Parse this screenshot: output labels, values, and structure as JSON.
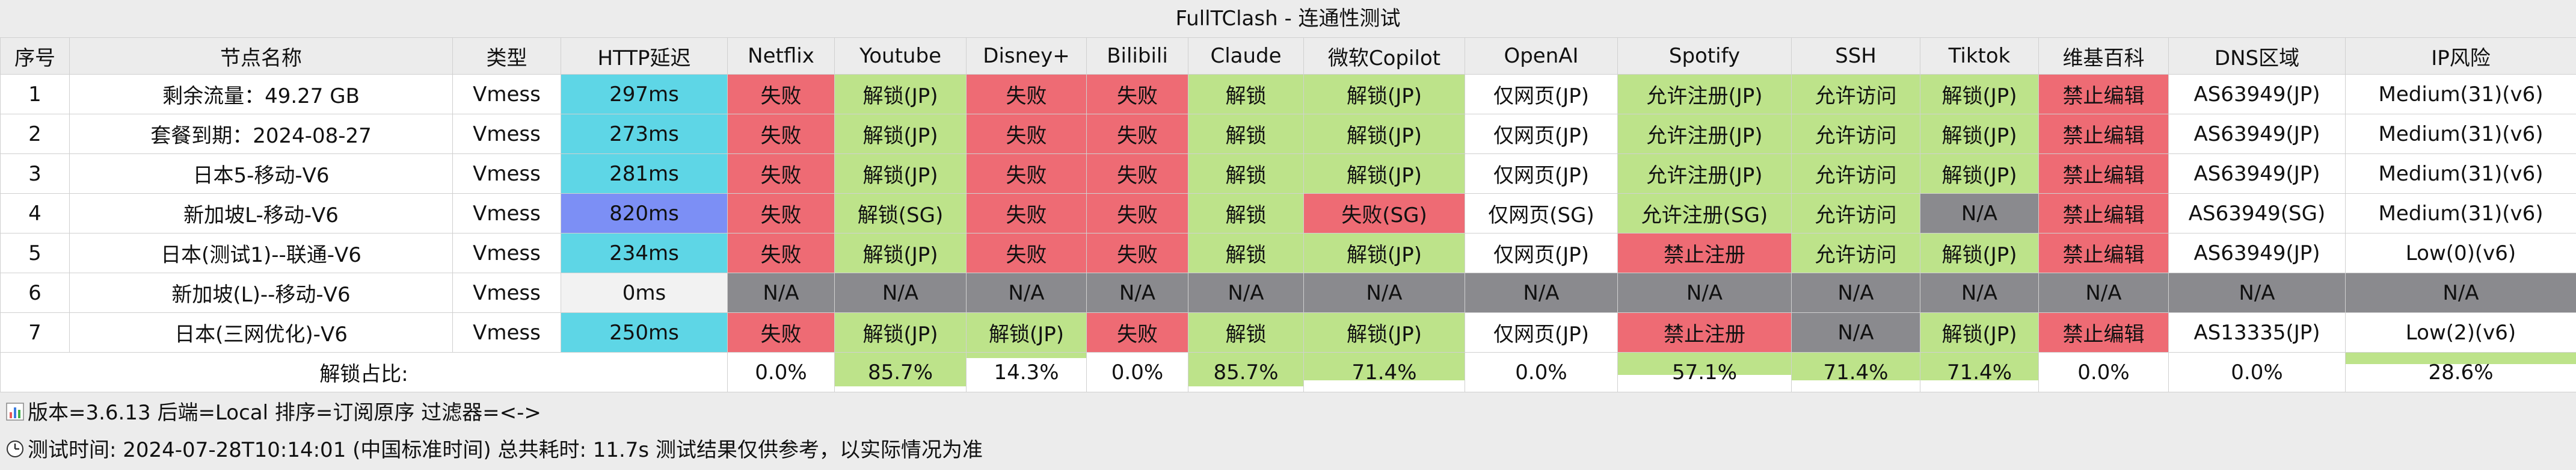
{
  "window": {
    "title": "FullTClash - 连通性测试"
  },
  "colors": {
    "fail": "#ee6b74",
    "unlock": "#bde38a",
    "na": "#8a8a8e",
    "neutral": "#ffffff",
    "latency_ok": "#5ed6e6",
    "latency_slow": "#7c8ff5",
    "latency_zero": "#f2f2f2"
  },
  "columns": [
    "序号",
    "节点名称",
    "类型",
    "HTTP延迟",
    "Netflix",
    "Youtube",
    "Disney+",
    "Bilibili",
    "Claude",
    "微软Copilot",
    "OpenAI",
    "Spotify",
    "SSH",
    "Tiktok",
    "维基百科",
    "DNS区域",
    "IP风险"
  ],
  "rows": [
    {
      "index": "1",
      "name": "剩余流量：49.27 GB",
      "type": "Vmess",
      "latency": "297ms",
      "latency_state": "cyan",
      "cells": [
        {
          "text": "失败",
          "state": "red"
        },
        {
          "text": "解锁(JP)",
          "state": "green"
        },
        {
          "text": "失败",
          "state": "red"
        },
        {
          "text": "失败",
          "state": "red"
        },
        {
          "text": "解锁",
          "state": "green"
        },
        {
          "text": "解锁(JP)",
          "state": "green"
        },
        {
          "text": "仅网页(JP)",
          "state": "white"
        },
        {
          "text": "允许注册(JP)",
          "state": "green"
        },
        {
          "text": "允许访问",
          "state": "green"
        },
        {
          "text": "解锁(JP)",
          "state": "green"
        },
        {
          "text": "禁止编辑",
          "state": "red"
        },
        {
          "text": "AS63949(JP)",
          "state": "white"
        },
        {
          "text": "Medium(31)(v6)",
          "state": "white"
        }
      ]
    },
    {
      "index": "2",
      "name": "套餐到期：2024-08-27",
      "type": "Vmess",
      "latency": "273ms",
      "latency_state": "cyan",
      "cells": [
        {
          "text": "失败",
          "state": "red"
        },
        {
          "text": "解锁(JP)",
          "state": "green"
        },
        {
          "text": "失败",
          "state": "red"
        },
        {
          "text": "失败",
          "state": "red"
        },
        {
          "text": "解锁",
          "state": "green"
        },
        {
          "text": "解锁(JP)",
          "state": "green"
        },
        {
          "text": "仅网页(JP)",
          "state": "white"
        },
        {
          "text": "允许注册(JP)",
          "state": "green"
        },
        {
          "text": "允许访问",
          "state": "green"
        },
        {
          "text": "解锁(JP)",
          "state": "green"
        },
        {
          "text": "禁止编辑",
          "state": "red"
        },
        {
          "text": "AS63949(JP)",
          "state": "white"
        },
        {
          "text": "Medium(31)(v6)",
          "state": "white"
        }
      ]
    },
    {
      "index": "3",
      "name": "日本5-移动-V6",
      "type": "Vmess",
      "latency": "281ms",
      "latency_state": "cyan",
      "cells": [
        {
          "text": "失败",
          "state": "red"
        },
        {
          "text": "解锁(JP)",
          "state": "green"
        },
        {
          "text": "失败",
          "state": "red"
        },
        {
          "text": "失败",
          "state": "red"
        },
        {
          "text": "解锁",
          "state": "green"
        },
        {
          "text": "解锁(JP)",
          "state": "green"
        },
        {
          "text": "仅网页(JP)",
          "state": "white"
        },
        {
          "text": "允许注册(JP)",
          "state": "green"
        },
        {
          "text": "允许访问",
          "state": "green"
        },
        {
          "text": "解锁(JP)",
          "state": "green"
        },
        {
          "text": "禁止编辑",
          "state": "red"
        },
        {
          "text": "AS63949(JP)",
          "state": "white"
        },
        {
          "text": "Medium(31)(v6)",
          "state": "white"
        }
      ]
    },
    {
      "index": "4",
      "name": "新加坡L-移动-V6",
      "type": "Vmess",
      "latency": "820ms",
      "latency_state": "blue",
      "cells": [
        {
          "text": "失败",
          "state": "red"
        },
        {
          "text": "解锁(SG)",
          "state": "green"
        },
        {
          "text": "失败",
          "state": "red"
        },
        {
          "text": "失败",
          "state": "red"
        },
        {
          "text": "解锁",
          "state": "green"
        },
        {
          "text": "失败(SG)",
          "state": "red"
        },
        {
          "text": "仅网页(SG)",
          "state": "white"
        },
        {
          "text": "允许注册(SG)",
          "state": "green"
        },
        {
          "text": "允许访问",
          "state": "green"
        },
        {
          "text": "N/A",
          "state": "gray"
        },
        {
          "text": "禁止编辑",
          "state": "red"
        },
        {
          "text": "AS63949(SG)",
          "state": "white"
        },
        {
          "text": "Medium(31)(v6)",
          "state": "white"
        }
      ]
    },
    {
      "index": "5",
      "name": "日本(测试1)--联通-V6",
      "type": "Vmess",
      "latency": "234ms",
      "latency_state": "cyan",
      "cells": [
        {
          "text": "失败",
          "state": "red"
        },
        {
          "text": "解锁(JP)",
          "state": "green"
        },
        {
          "text": "失败",
          "state": "red"
        },
        {
          "text": "失败",
          "state": "red"
        },
        {
          "text": "解锁",
          "state": "green"
        },
        {
          "text": "解锁(JP)",
          "state": "green"
        },
        {
          "text": "仅网页(JP)",
          "state": "white"
        },
        {
          "text": "禁止注册",
          "state": "red"
        },
        {
          "text": "允许访问",
          "state": "green"
        },
        {
          "text": "解锁(JP)",
          "state": "green"
        },
        {
          "text": "禁止编辑",
          "state": "red"
        },
        {
          "text": "AS63949(JP)",
          "state": "white"
        },
        {
          "text": "Low(0)(v6)",
          "state": "white"
        }
      ]
    },
    {
      "index": "6",
      "name": "新加坡(L)--移动-V6",
      "type": "Vmess",
      "latency": "0ms",
      "latency_state": "none",
      "cells": [
        {
          "text": "N/A",
          "state": "gray"
        },
        {
          "text": "N/A",
          "state": "gray"
        },
        {
          "text": "N/A",
          "state": "gray"
        },
        {
          "text": "N/A",
          "state": "gray"
        },
        {
          "text": "N/A",
          "state": "gray"
        },
        {
          "text": "N/A",
          "state": "gray"
        },
        {
          "text": "N/A",
          "state": "gray"
        },
        {
          "text": "N/A",
          "state": "gray"
        },
        {
          "text": "N/A",
          "state": "gray"
        },
        {
          "text": "N/A",
          "state": "gray"
        },
        {
          "text": "N/A",
          "state": "gray"
        },
        {
          "text": "N/A",
          "state": "gray"
        },
        {
          "text": "N/A",
          "state": "gray"
        }
      ]
    },
    {
      "index": "7",
      "name": "日本(三网优化)-V6",
      "type": "Vmess",
      "latency": "250ms",
      "latency_state": "cyan",
      "cells": [
        {
          "text": "失败",
          "state": "red"
        },
        {
          "text": "解锁(JP)",
          "state": "green"
        },
        {
          "text": "解锁(JP)",
          "state": "green"
        },
        {
          "text": "失败",
          "state": "red"
        },
        {
          "text": "解锁",
          "state": "green"
        },
        {
          "text": "解锁(JP)",
          "state": "green"
        },
        {
          "text": "仅网页(JP)",
          "state": "white"
        },
        {
          "text": "禁止注册",
          "state": "red"
        },
        {
          "text": "N/A",
          "state": "gray"
        },
        {
          "text": "解锁(JP)",
          "state": "green"
        },
        {
          "text": "禁止编辑",
          "state": "red"
        },
        {
          "text": "AS13335(JP)",
          "state": "white"
        },
        {
          "text": "Low(2)(v6)",
          "state": "white"
        }
      ]
    }
  ],
  "summary": {
    "label": "解锁占比:",
    "cells": [
      {
        "text": "0.0%",
        "fraction": 0.0
      },
      {
        "text": "85.7%",
        "fraction": 0.857
      },
      {
        "text": "14.3%",
        "fraction": 0.143
      },
      {
        "text": "0.0%",
        "fraction": 0.0
      },
      {
        "text": "85.7%",
        "fraction": 0.857
      },
      {
        "text": "71.4%",
        "fraction": 0.714
      },
      {
        "text": "0.0%",
        "fraction": 0.0
      },
      {
        "text": "57.1%",
        "fraction": 0.571
      },
      {
        "text": "71.4%",
        "fraction": 0.714
      },
      {
        "text": "71.4%",
        "fraction": 0.714
      },
      {
        "text": "0.0%",
        "fraction": 0.0
      },
      {
        "text": "0.0%",
        "fraction": 0.0
      },
      {
        "text": "28.6%",
        "fraction": 0.286
      }
    ]
  },
  "footer": {
    "line1_icon": "bar-chart-icon",
    "line1": "版本=3.6.13  后端=Local  排序=订阅原序  过滤器=<->",
    "line2_icon": "clock-icon",
    "line2": "测试时间: 2024-07-28T10:14:01 (中国标准时间) 总共耗时: 11.7s 测试结果仅供参考，以实际情况为准"
  }
}
